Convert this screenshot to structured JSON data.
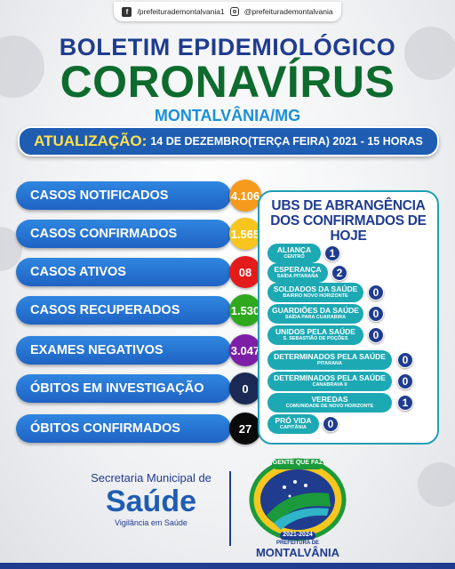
{
  "social": {
    "facebook": "/prefeiturademontalvania1",
    "instagram": "@prefeiturademontalvania"
  },
  "header": {
    "line1": "BOLETIM EPIDEMIOLÓGICO",
    "line2": "CORONAVÍRUS",
    "line3": "MONTALVÂNIA/MG"
  },
  "update": {
    "label": "ATUALIZAÇÃO:",
    "value": "14 DE DEZEMBRO(TERÇA FEIRA) 2021 - 15 HORAS"
  },
  "stats": [
    {
      "label": "CASOS NOTIFICADOS",
      "value": "4.106",
      "color": "#f59a1c",
      "text_color": "#ffffff"
    },
    {
      "label": "CASOS CONFIRMADOS",
      "value": "1.565",
      "color": "#f7c51e",
      "text_color": "#ffffff"
    },
    {
      "label": "CASOS ATIVOS",
      "value": "08",
      "color": "#e41b1b",
      "text_color": "#ffffff"
    },
    {
      "label": "CASOS RECUPERADOS",
      "value": "1.530",
      "color": "#2fa81d",
      "text_color": "#ffffff"
    },
    {
      "label": "EXAMES NEGATIVOS",
      "value": "3.047",
      "color": "#7d1fa6",
      "text_color": "#ffffff"
    },
    {
      "label": "ÓBITOS EM INVESTIGAÇÃO",
      "value": "0",
      "color": "#1a2a55",
      "text_color": "#ffffff"
    },
    {
      "label": "ÓBITOS CONFIRMADOS",
      "value": "27",
      "color": "#0a0a0a",
      "text_color": "#ffffff"
    }
  ],
  "ubs_panel": {
    "title_line1": "UBS DE ABRANGÊNCIA",
    "title_line2": "DOS CONFIRMADOS DE HOJE",
    "items": [
      {
        "name": "ALIANÇA",
        "sub": "CENTRO",
        "count": "1"
      },
      {
        "name": "ESPERANÇA",
        "sub": "SAÍDA PITARANA",
        "count": "2"
      },
      {
        "name": "SOLDADOS DA SAÚDE",
        "sub": "BAIRRO NOVO HORIZONTE",
        "count": "0"
      },
      {
        "name": "GUARDIÕES DA SAÚDE",
        "sub": "SAÍDA PARA CUARABIRA",
        "count": "0"
      },
      {
        "name": "UNIDOS PELA SAÚDE",
        "sub": "S. SEBASTIÃO DE POÇÕES",
        "count": "0"
      },
      {
        "name": "DETERMINADOS PELA SAÚDE",
        "sub": "PITARANA",
        "count": "0"
      },
      {
        "name": "DETERMINADOS PELA SAÚDE",
        "sub": "CANABRAVA II",
        "count": "0"
      },
      {
        "name": "VEREDAS",
        "sub": "COMUNIDADE DE NOVO HORIZONTE",
        "count": "1"
      },
      {
        "name": "PRÓ VIDA",
        "sub": "CAPITÂNIA",
        "count": "0"
      }
    ]
  },
  "footer": {
    "secretaria": "Secretaria Municipal de",
    "saude": "Saúde",
    "vigilancia": "Vigilância em Saúde",
    "logo_top": "GENTE QUE FAZ",
    "logo_years": "2021-2024",
    "logo_prefeitura": "PREFEITURA DE",
    "logo_city": "MONTALVÂNIA"
  }
}
